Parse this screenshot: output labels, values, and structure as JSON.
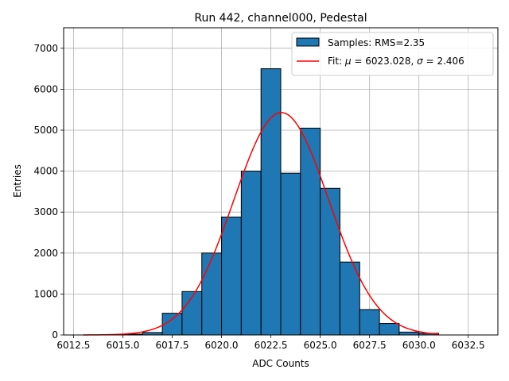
{
  "chart_data": {
    "type": "bar",
    "title": "Run 442, channel000, Pedestal",
    "xlabel": "ADC Counts",
    "ylabel": "Entries",
    "xlim": [
      6012.0,
      6034.0
    ],
    "ylim": [
      0,
      7500
    ],
    "xticks": [
      6012.5,
      6015.0,
      6017.5,
      6020.0,
      6022.5,
      6025.0,
      6027.5,
      6030.0,
      6032.5
    ],
    "xtick_labels": [
      "6012.5",
      "6015.0",
      "6017.5",
      "6020.0",
      "6022.5",
      "6025.0",
      "6027.5",
      "6030.0",
      "6032.5"
    ],
    "yticks": [
      0,
      1000,
      2000,
      3000,
      4000,
      5000,
      6000,
      7000
    ],
    "ytick_labels": [
      "0",
      "1000",
      "2000",
      "3000",
      "4000",
      "5000",
      "6000",
      "7000"
    ],
    "grid": true,
    "legend_position": "top-right",
    "legend": [
      {
        "label": "Samples: RMS=2.35",
        "kind": "patch"
      },
      {
        "label_prefix": "Fit: ",
        "mu_symbol": "μ",
        "mu_text": " = 6023.028, ",
        "sigma_symbol": "σ",
        "sigma_text": " = 2.406",
        "kind": "line"
      }
    ],
    "histogram": {
      "bin_edges": [
        6015,
        6016,
        6017,
        6018,
        6019,
        6020,
        6021,
        6022,
        6023,
        6024,
        6025,
        6026,
        6027,
        6028,
        6029,
        6030,
        6031
      ],
      "counts": [
        20,
        60,
        530,
        1060,
        2000,
        2880,
        4000,
        6500,
        3950,
        5050,
        3580,
        1780,
        620,
        280,
        70,
        40
      ],
      "color": "#1f77b4",
      "edgecolor": "#000000"
    },
    "fit": {
      "mu": 6023.028,
      "sigma": 2.406,
      "amplitude": 5430,
      "x_range": [
        6013.0,
        6031.0
      ],
      "color": "#ff0000"
    }
  }
}
